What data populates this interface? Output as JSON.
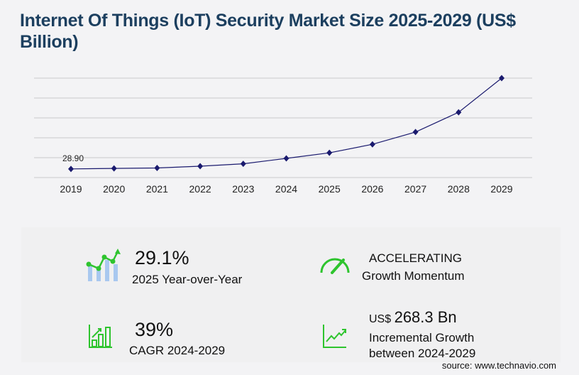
{
  "title": "Internet Of Things (IoT) Security Market Size 2025-2029 (US$ Billion)",
  "chart_data": {
    "type": "line",
    "categories": [
      "2019",
      "2020",
      "2021",
      "2022",
      "2023",
      "2024",
      "2025",
      "2026",
      "2027",
      "2028",
      "2029"
    ],
    "values": [
      28.9,
      30.5,
      32,
      38,
      46,
      64,
      82.6,
      111,
      152,
      218,
      332
    ],
    "data_labels": {
      "2019": "28.90"
    },
    "ylim": [
      0,
      332
    ],
    "grid": true,
    "color": "#1a1a6e"
  },
  "stats": {
    "yoy_value": "29.1%",
    "yoy_label": "2025 Year-over-Year",
    "momentum_value": "ACCELERATING",
    "momentum_label": "Growth Momentum",
    "cagr_value": "39%",
    "cagr_label": "CAGR 2024-2029",
    "incr_prefix": "US$",
    "incr_value": "268.3 Bn",
    "incr_label1": "Incremental Growth",
    "incr_label2": "between 2024-2029"
  },
  "icon_color": "#2ec42e",
  "source": "source: www.technavio.com"
}
